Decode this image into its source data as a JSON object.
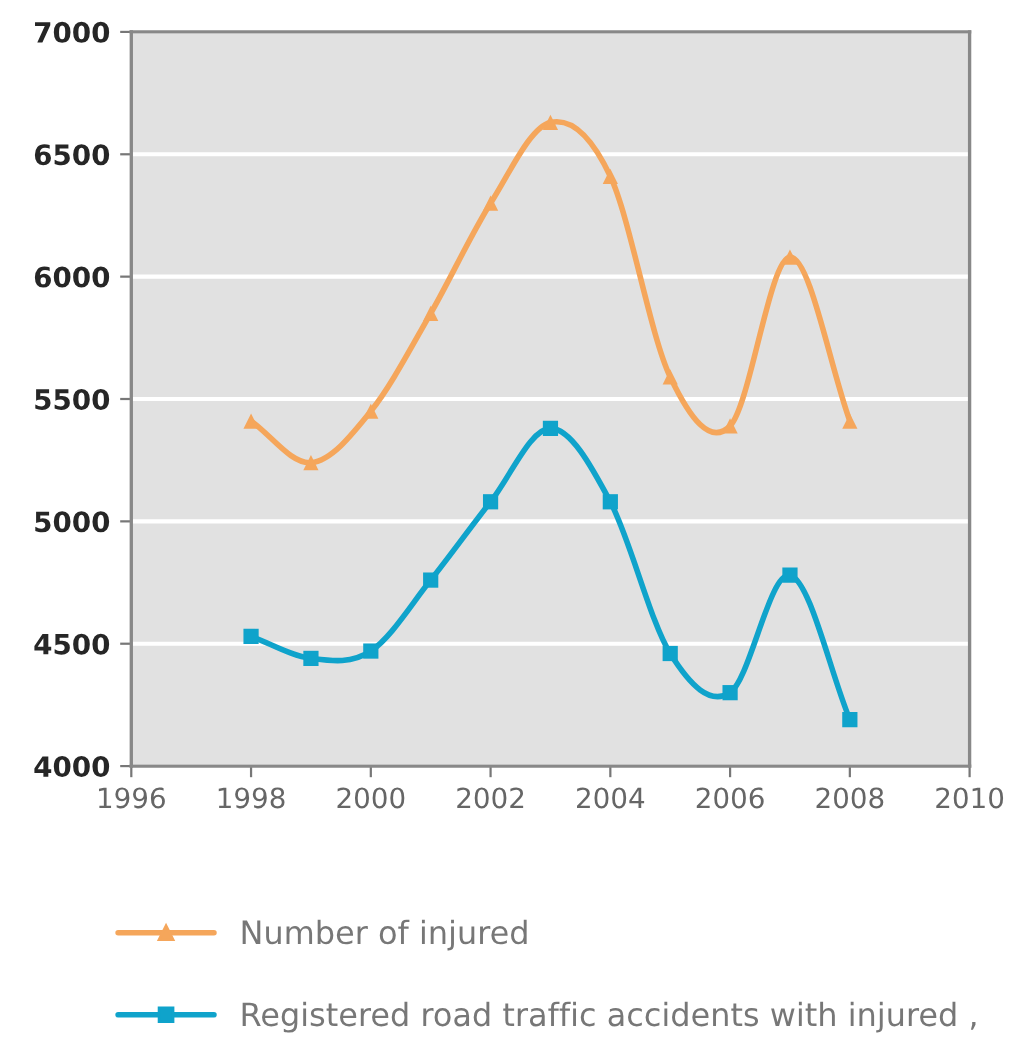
{
  "chart_data": {
    "type": "line",
    "xlim": [
      1996,
      2010
    ],
    "xticks": [
      1996,
      1998,
      2000,
      2002,
      2004,
      2006,
      2008,
      2010
    ],
    "ylim": [
      4000,
      7000
    ],
    "yticks": [
      4000,
      4500,
      5000,
      5500,
      6000,
      6500,
      7000
    ],
    "grid": "y",
    "legend": "bottom",
    "series": [
      {
        "name": "Number of injured",
        "color": "#f5a65b",
        "marker": "triangle",
        "x": [
          1998,
          1999,
          2000,
          2001,
          2002,
          2003,
          2004,
          2005,
          2006,
          2007,
          2008
        ],
        "values": [
          5410,
          5240,
          5450,
          5850,
          6300,
          6630,
          6410,
          5590,
          5390,
          6080,
          5410
        ]
      },
      {
        "name": "Registered road traffic accidents with injured ,",
        "color": "#0fa3cb",
        "marker": "square",
        "x": [
          1998,
          1999,
          2000,
          2001,
          2002,
          2003,
          2004,
          2005,
          2006,
          2007,
          2008
        ],
        "values": [
          4530,
          4440,
          4470,
          4760,
          5080,
          5380,
          5080,
          4460,
          4300,
          4780,
          4190
        ]
      }
    ]
  }
}
